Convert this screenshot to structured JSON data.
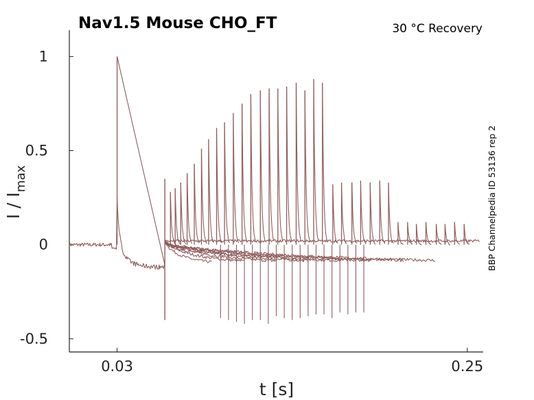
{
  "title": "Nav1.5  Mouse  CHO_FT",
  "subtitle": "30 °C  Recovery",
  "side_label": "BBP Channelpedia ID 53136 rep 2",
  "colors": {
    "trace": "#8e5d5d",
    "axis": "#222222"
  },
  "chart_data": {
    "type": "line",
    "title": "Nav1.5  Mouse  CHO_FT",
    "xlabel": "t [s]",
    "ylabel_main": "I / I",
    "ylabel_sub": "max",
    "xlim": [
      0.0,
      0.26
    ],
    "ylim": [
      -0.57,
      1.14
    ],
    "xticks": [
      0.03,
      0.25
    ],
    "xtick_labels": [
      "0.03",
      "0.25"
    ],
    "yticks": [
      1,
      0.5,
      0,
      -0.5
    ],
    "ytick_labels": [
      "1",
      "0.5",
      "0",
      "-0.5"
    ],
    "grid": false,
    "legend": "none",
    "protocol": {
      "prepulse_time": 0.03,
      "prepulse_peak": 1.0,
      "prepulse_baseline_end": -0.12,
      "step_return_time": 0.06,
      "step_return_min": -0.4,
      "step_return_max": 0.35,
      "test_pulse_times": [
        0.0635,
        0.0665,
        0.07,
        0.074,
        0.0785,
        0.083,
        0.0875,
        0.0925,
        0.0975,
        0.103,
        0.1085,
        0.114,
        0.12,
        0.1255,
        0.131,
        0.1365,
        0.1425,
        0.148,
        0.1535,
        0.159,
        0.1655,
        0.171,
        0.1775,
        0.183,
        0.189,
        0.195,
        0.2005,
        0.2065,
        0.2125,
        0.218,
        0.224,
        0.2305,
        0.236,
        0.242,
        0.248
      ],
      "test_pulse_peaks": [
        0.28,
        0.3,
        0.33,
        0.38,
        0.43,
        0.51,
        0.56,
        0.62,
        0.65,
        0.7,
        0.75,
        0.8,
        0.82,
        0.83,
        0.83,
        0.84,
        0.86,
        0.82,
        0.88,
        0.86,
        0.32,
        0.33,
        0.33,
        0.34,
        0.33,
        0.34,
        0.33,
        0.12,
        0.12,
        0.11,
        0.12,
        0.11,
        0.11,
        0.12,
        0.11
      ],
      "negative_spike_times": [
        0.095,
        0.1,
        0.105,
        0.11,
        0.115,
        0.12,
        0.125,
        0.13,
        0.135,
        0.14,
        0.145,
        0.15,
        0.155,
        0.16,
        0.165,
        0.17,
        0.175,
        0.18,
        0.185
      ],
      "negative_spike_mins": [
        -0.39,
        -0.4,
        -0.41,
        -0.42,
        -0.4,
        -0.4,
        -0.42,
        -0.38,
        -0.39,
        -0.4,
        -0.39,
        -0.38,
        -0.37,
        -0.37,
        -0.39,
        -0.36,
        -0.37,
        -0.36,
        -0.36
      ]
    }
  }
}
